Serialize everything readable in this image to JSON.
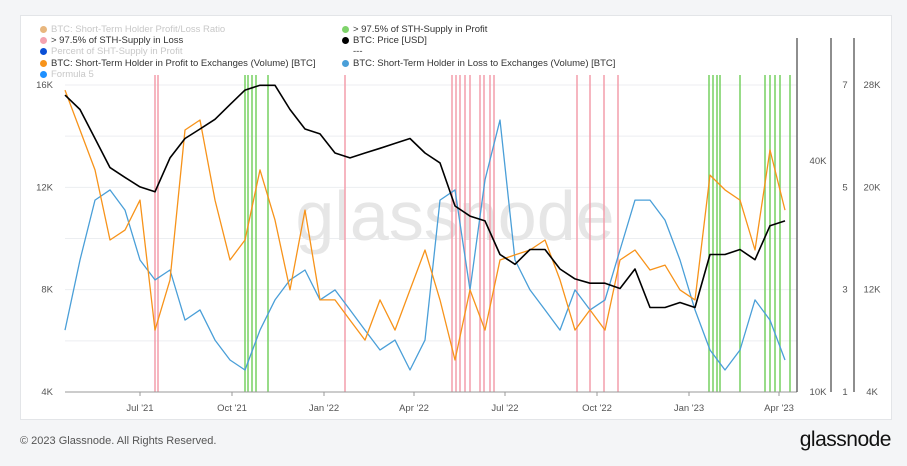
{
  "legend": [
    {
      "label": "BTC: Short-Term Holder Profit/Loss Ratio",
      "color": "#e8b77e",
      "active": false
    },
    {
      "label": "> 97.5% of STH-Supply in Profit",
      "color": "#7fd36b",
      "active": true
    },
    {
      "label": "> 97.5% of STH-Supply in Loss",
      "color": "#f4a3b0",
      "active": true
    },
    {
      "label": "BTC: Price [USD]",
      "color": "#000000",
      "active": true
    },
    {
      "label": "Percent of SHT-Supply in Profit",
      "color": "#0a4fd6",
      "active": false
    },
    {
      "label": "---",
      "color": "",
      "active": true
    },
    {
      "label": "BTC: Short-Term Holder in Profit to Exchanges (Volume) [BTC]",
      "color": "#f7931a",
      "active": true
    },
    {
      "label": "BTC: Short-Term Holder in Loss to Exchanges (Volume) [BTC]",
      "color": "#4a9fd8",
      "active": true
    },
    {
      "label": "Formula 5",
      "color": "#1e90ff",
      "active": false
    }
  ],
  "chart_data": {
    "type": "line",
    "watermark": "glassnode",
    "x": {
      "start": "2021-04-17",
      "step_days": 15,
      "range_days": [
        0,
        732
      ],
      "ticks": [
        {
          "day": 75,
          "label": "Jul '21"
        },
        {
          "day": 167,
          "label": "Oct '21"
        },
        {
          "day": 259,
          "label": "Jan '22"
        },
        {
          "day": 349,
          "label": "Apr '22"
        },
        {
          "day": 440,
          "label": "Jul '22"
        },
        {
          "day": 532,
          "label": "Oct '22"
        },
        {
          "day": 624,
          "label": "Jan '23"
        },
        {
          "day": 714,
          "label": "Apr '23"
        }
      ]
    },
    "axes": {
      "left": {
        "range": [
          4000,
          16000
        ],
        "ticks": [
          "4K",
          "8K",
          "12K",
          "16K"
        ],
        "tick_values": [
          4000,
          8000,
          12000,
          16000
        ]
      },
      "price": {
        "scale": "log",
        "range": [
          10000,
          63000
        ],
        "ticks": [
          "10K",
          "40K"
        ],
        "tick_values": [
          10000,
          40000
        ]
      },
      "ratio": {
        "range": [
          1,
          7
        ],
        "ticks": [
          "1",
          "3",
          "5",
          "7"
        ],
        "tick_values": [
          1,
          3,
          5,
          7
        ]
      },
      "right": {
        "range": [
          4000,
          28000
        ],
        "ticks": [
          "4K",
          "12K",
          "20K",
          "28K"
        ],
        "tick_values": [
          4000,
          12000,
          20000,
          28000
        ]
      }
    },
    "series": [
      {
        "name": "BTC: Short-Term Holder in Loss to Exchanges (Volume) [BTC]",
        "axis": "left",
        "color": "#4a9fd8",
        "values": [
          6420,
          9160,
          11500,
          11900,
          11110,
          9160,
          8380,
          8770,
          6810,
          7210,
          6030,
          5250,
          4860,
          6420,
          7600,
          8380,
          8770,
          7600,
          7990,
          7210,
          6420,
          5640,
          6030,
          4860,
          6030,
          11500,
          11900,
          7990,
          12290,
          14630,
          9160,
          7990,
          7210,
          6420,
          7990,
          7210,
          7600,
          9550,
          11500,
          11500,
          10720,
          9160,
          7210,
          5640,
          4860,
          5640,
          7600,
          6810,
          5250
        ]
      },
      {
        "name": "BTC: Short-Term Holder in Profit to Exchanges (Volume) [BTC]",
        "axis": "left",
        "color": "#f7931a",
        "values": [
          15800,
          14240,
          12680,
          9940,
          10330,
          11500,
          6420,
          8380,
          14240,
          14630,
          11500,
          9160,
          9940,
          12680,
          10720,
          7990,
          11110,
          7600,
          7600,
          6810,
          6030,
          7600,
          6420,
          7990,
          9550,
          7600,
          5250,
          7990,
          6420,
          9160,
          9360,
          9550,
          9940,
          8380,
          6420,
          7210,
          6420,
          9160,
          9550,
          8770,
          8960,
          7990,
          7600,
          12480,
          11900,
          11500,
          9550,
          13460,
          11110
        ]
      },
      {
        "name": "BTC: Price [USD]",
        "axis": "price",
        "color": "#000000",
        "values": [
          59300,
          54400,
          45700,
          38400,
          36200,
          34200,
          33200,
          40700,
          45700,
          48400,
          51300,
          56000,
          61100,
          62900,
          62900,
          54400,
          48400,
          47000,
          41900,
          40700,
          41900,
          43100,
          44400,
          45700,
          41900,
          39500,
          30500,
          28700,
          27900,
          22800,
          21500,
          23500,
          23500,
          20900,
          19700,
          19200,
          19200,
          18600,
          20900,
          16600,
          16600,
          17100,
          16600,
          22800,
          22800,
          23500,
          22100,
          27100,
          27900
        ]
      }
    ],
    "signals": {
      "profit": {
        "name": "> 97.5% of STH-Supply in Profit",
        "color": "#7fd36b",
        "days": [
          180,
          183,
          187,
          191,
          203,
          644,
          648,
          652,
          655,
          675,
          700,
          705,
          710,
          715,
          725
        ]
      },
      "loss": {
        "name": "> 97.5% of STH-Supply in Loss",
        "color": "#f4a3b0",
        "days": [
          90,
          93,
          280,
          387,
          391,
          395,
          400,
          405,
          415,
          419,
          425,
          429,
          512,
          525,
          539,
          553
        ]
      }
    }
  },
  "footer": {
    "copyright": "© 2023 Glassnode. All Rights Reserved.",
    "logo": "glassnode"
  }
}
